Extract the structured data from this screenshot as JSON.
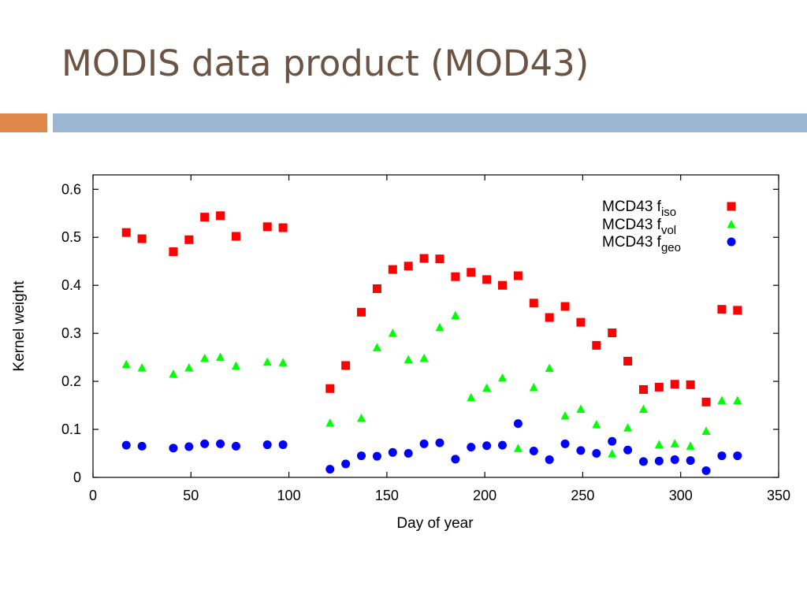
{
  "slide": {
    "title": "MODIS data product (MOD43)",
    "colors": {
      "title": "#6b5444",
      "accent_orange": "#e0874a",
      "accent_blue": "#9ab6d2"
    }
  },
  "chart_data": {
    "type": "scatter",
    "title": "",
    "xlabel": "Day of year",
    "ylabel": "Kernel weight",
    "xlim": [
      0,
      350
    ],
    "ylim": [
      0,
      0.63
    ],
    "xticks": [
      "0",
      "50",
      "100",
      "150",
      "200",
      "250",
      "300",
      "350"
    ],
    "yticks": [
      "0",
      "0.1",
      "0.2",
      "0.3",
      "0.4",
      "0.5",
      "0.6"
    ],
    "grid": false,
    "legend_position": "top-right",
    "series": [
      {
        "name": "MCD43 f",
        "subscript": "iso",
        "marker": "square",
        "color": "#ff0000",
        "x": [
          17,
          25,
          41,
          49,
          57,
          65,
          73,
          89,
          97,
          121,
          129,
          137,
          145,
          153,
          161,
          169,
          177,
          185,
          193,
          201,
          209,
          217,
          225,
          233,
          241,
          249,
          257,
          265,
          273,
          281,
          289,
          297,
          305,
          313,
          321,
          329
        ],
        "y": [
          0.51,
          0.497,
          0.47,
          0.495,
          0.542,
          0.545,
          0.502,
          0.522,
          0.52,
          0.185,
          0.233,
          0.344,
          0.393,
          0.433,
          0.44,
          0.456,
          0.455,
          0.418,
          0.427,
          0.412,
          0.4,
          0.42,
          0.363,
          0.333,
          0.356,
          0.323,
          0.275,
          0.301,
          0.242,
          0.183,
          0.188,
          0.194,
          0.193,
          0.157,
          0.35,
          0.348
        ]
      },
      {
        "name": "MCD43  f",
        "subscript": "vol",
        "marker": "triangle",
        "color": "#00ff00",
        "x": [
          17,
          25,
          41,
          49,
          57,
          65,
          73,
          89,
          97,
          121,
          137,
          145,
          153,
          161,
          169,
          177,
          185,
          193,
          201,
          209,
          217,
          225,
          233,
          241,
          249,
          257,
          265,
          273,
          281,
          289,
          297,
          305,
          313,
          321,
          329
        ],
        "y": [
          0.235,
          0.228,
          0.215,
          0.228,
          0.248,
          0.25,
          0.232,
          0.24,
          0.239,
          0.113,
          0.123,
          0.27,
          0.3,
          0.245,
          0.248,
          0.312,
          0.337,
          0.166,
          0.186,
          0.207,
          0.06,
          0.187,
          0.227,
          0.128,
          0.142,
          0.11,
          0.049,
          0.103,
          0.142,
          0.068,
          0.07,
          0.065,
          0.096,
          0.16,
          0.16
        ]
      },
      {
        "name": "MCD43 f",
        "subscript": "geo",
        "marker": "circle",
        "color": "#0000ff",
        "x": [
          17,
          25,
          41,
          49,
          57,
          65,
          73,
          89,
          97,
          121,
          129,
          137,
          145,
          153,
          161,
          169,
          177,
          185,
          193,
          201,
          209,
          217,
          225,
          233,
          241,
          249,
          257,
          265,
          273,
          281,
          289,
          297,
          305,
          313,
          321,
          329
        ],
        "y": [
          0.067,
          0.065,
          0.061,
          0.064,
          0.07,
          0.07,
          0.065,
          0.068,
          0.068,
          0.017,
          0.028,
          0.045,
          0.044,
          0.052,
          0.05,
          0.07,
          0.072,
          0.038,
          0.063,
          0.066,
          0.067,
          0.112,
          0.055,
          0.037,
          0.07,
          0.056,
          0.05,
          0.075,
          0.057,
          0.033,
          0.034,
          0.037,
          0.035,
          0.014,
          0.045,
          0.045
        ]
      }
    ]
  }
}
